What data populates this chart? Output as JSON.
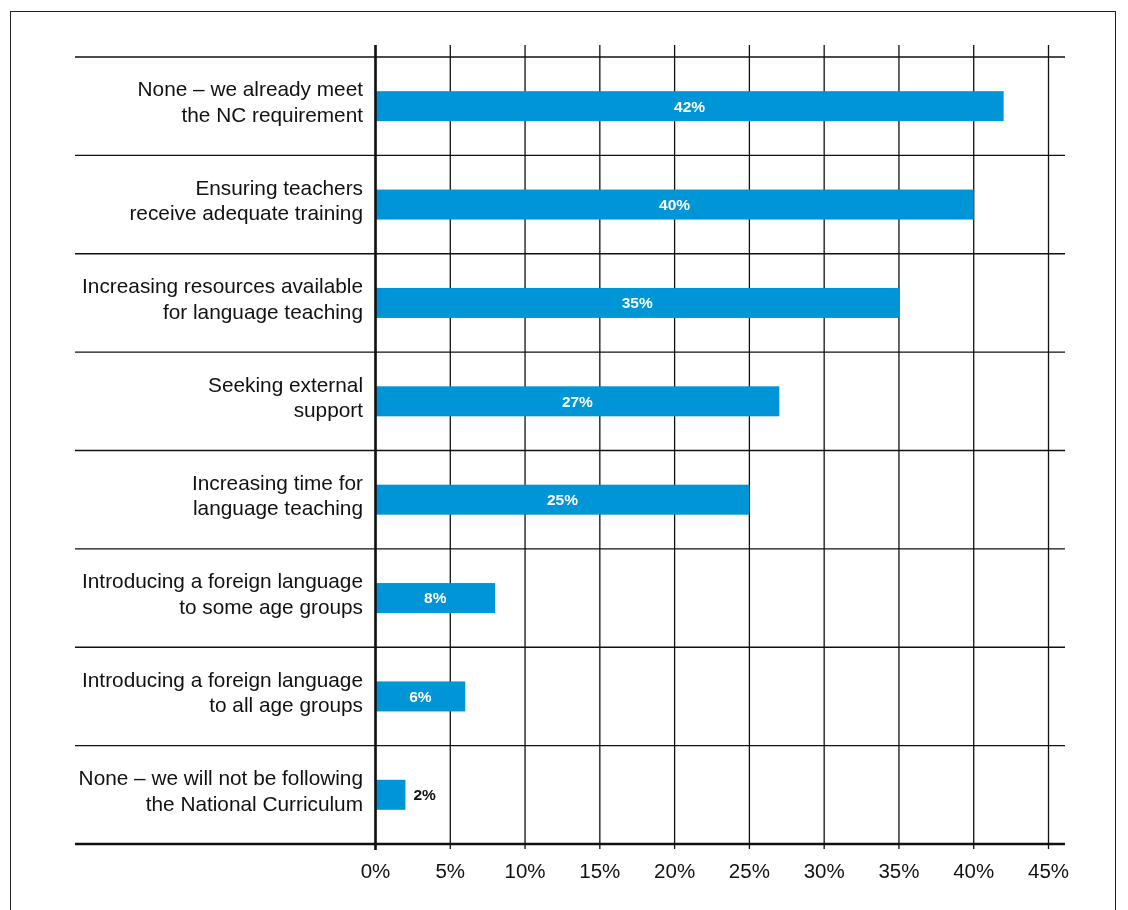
{
  "chart_data": {
    "type": "bar",
    "orientation": "horizontal",
    "categories": [
      "None – we already meet\nthe NC requirement",
      "Ensuring teachers\nreceive adequate training",
      "Increasing resources available\nfor language teaching",
      "Seeking external\nsupport",
      "Increasing time for\nlanguage teaching",
      "Introducing a foreign language\nto some age groups",
      "Introducing a foreign language\nto all age groups",
      "None – we will not be following\nthe National Curriculum"
    ],
    "values": [
      42,
      40,
      35,
      27,
      25,
      8,
      6,
      2
    ],
    "value_labels": [
      "42%",
      "40%",
      "35%",
      "27%",
      "25%",
      "8%",
      "6%",
      "2%"
    ],
    "color": "#0095d6",
    "xlim": [
      0,
      45
    ],
    "xticks": [
      {
        "value": 0,
        "label": "0%"
      },
      {
        "value": 5,
        "label": "5%"
      },
      {
        "value": 10,
        "label": "10%"
      },
      {
        "value": 15,
        "label": "15%"
      },
      {
        "value": 20,
        "label": "20%"
      },
      {
        "value": 25,
        "label": "25%"
      },
      {
        "value": 30,
        "label": "30%"
      },
      {
        "value": 35,
        "label": "35%"
      },
      {
        "value": 40,
        "label": "40%"
      },
      {
        "value": 45,
        "label": "45%"
      }
    ],
    "grid": true
  }
}
